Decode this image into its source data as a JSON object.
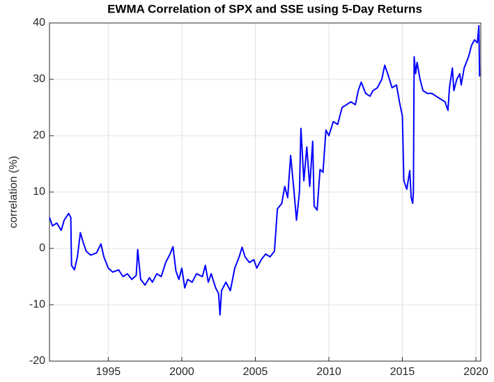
{
  "chart_data": {
    "type": "line",
    "title": "EWMA Correlation of SPX and SSE using 5-Day Returns",
    "ylabel": "correlation (%)",
    "xlim": [
      1991.0,
      2020.33
    ],
    "xticks": [
      1995,
      2000,
      2005,
      2010,
      2015,
      2020
    ],
    "ylim": [
      -20,
      40
    ],
    "yticks": [
      -20,
      -10,
      0,
      10,
      20,
      30,
      40
    ],
    "grid": true,
    "series": [
      {
        "color": "#0000ff",
        "x": [
          1991.0,
          1991.2,
          1991.5,
          1991.8,
          1992.0,
          1992.3,
          1992.45,
          1992.5,
          1992.7,
          1992.9,
          1993.1,
          1993.3,
          1993.5,
          1993.8,
          1994.2,
          1994.5,
          1994.7,
          1995.0,
          1995.3,
          1995.7,
          1996.0,
          1996.3,
          1996.6,
          1996.9,
          1997.0,
          1997.2,
          1997.5,
          1997.8,
          1998.0,
          1998.3,
          1998.6,
          1998.9,
          1999.2,
          1999.4,
          1999.6,
          1999.8,
          2000.0,
          2000.2,
          2000.4,
          2000.7,
          2001.0,
          2001.4,
          2001.6,
          2001.8,
          2002.0,
          2002.3,
          2002.5,
          2002.6,
          2002.7,
          2003.0,
          2003.3,
          2003.6,
          2003.9,
          2004.1,
          2004.3,
          2004.6,
          2004.9,
          2005.1,
          2005.4,
          2005.7,
          2006.0,
          2006.3,
          2006.5,
          2006.8,
          2007.0,
          2007.2,
          2007.4,
          2007.6,
          2007.8,
          2008.0,
          2008.1,
          2008.3,
          2008.5,
          2008.7,
          2008.9,
          2009.0,
          2009.2,
          2009.4,
          2009.6,
          2009.8,
          2010.0,
          2010.3,
          2010.6,
          2010.9,
          2011.2,
          2011.5,
          2011.8,
          2012.0,
          2012.2,
          2012.5,
          2012.8,
          2013.0,
          2013.3,
          2013.6,
          2013.8,
          2014.0,
          2014.3,
          2014.6,
          2014.8,
          2015.0,
          2015.1,
          2015.3,
          2015.5,
          2015.6,
          2015.7,
          2015.75,
          2015.8,
          2015.9,
          2016.0,
          2016.2,
          2016.4,
          2016.7,
          2017.0,
          2017.3,
          2017.6,
          2017.9,
          2018.1,
          2018.2,
          2018.4,
          2018.5,
          2018.7,
          2018.9,
          2019.0,
          2019.2,
          2019.5,
          2019.7,
          2019.9,
          2020.1,
          2020.2,
          2020.25
        ],
        "values": [
          5.5,
          4.0,
          4.5,
          3.2,
          5.0,
          6.2,
          5.5,
          -3.0,
          -3.8,
          -1.5,
          2.8,
          1.0,
          -0.5,
          -1.2,
          -0.8,
          0.8,
          -1.5,
          -3.5,
          -4.2,
          -3.8,
          -5.0,
          -4.5,
          -5.5,
          -4.8,
          -0.2,
          -5.5,
          -6.5,
          -5.2,
          -6.0,
          -4.5,
          -5.0,
          -2.5,
          -1.0,
          0.3,
          -4.0,
          -5.5,
          -3.5,
          -7.0,
          -5.5,
          -6.0,
          -4.5,
          -5.0,
          -3.0,
          -6.0,
          -4.5,
          -7.0,
          -8.0,
          -11.8,
          -7.5,
          -6.0,
          -7.5,
          -3.5,
          -1.5,
          0.2,
          -1.5,
          -2.5,
          -2.0,
          -3.5,
          -2.0,
          -1.0,
          -1.5,
          -0.5,
          7.0,
          8.0,
          11.0,
          9.0,
          16.5,
          11.0,
          5.0,
          10.0,
          21.3,
          12.0,
          18.0,
          11.0,
          19.0,
          7.5,
          6.8,
          14.0,
          13.5,
          21.0,
          20.0,
          22.5,
          22.0,
          25.0,
          25.5,
          26.0,
          25.5,
          28.0,
          29.5,
          27.5,
          27.0,
          28.0,
          28.5,
          30.0,
          32.5,
          31.0,
          28.5,
          29.0,
          26.0,
          23.5,
          12.0,
          10.5,
          13.8,
          9.0,
          8.0,
          10.0,
          34.0,
          31.0,
          33.0,
          30.0,
          28.0,
          27.5,
          27.5,
          27.0,
          26.5,
          26.0,
          24.5,
          28.5,
          32.0,
          28.0,
          30.0,
          31.0,
          29.0,
          32.0,
          34.0,
          36.0,
          37.0,
          36.5,
          39.5,
          30.5
        ]
      }
    ]
  }
}
